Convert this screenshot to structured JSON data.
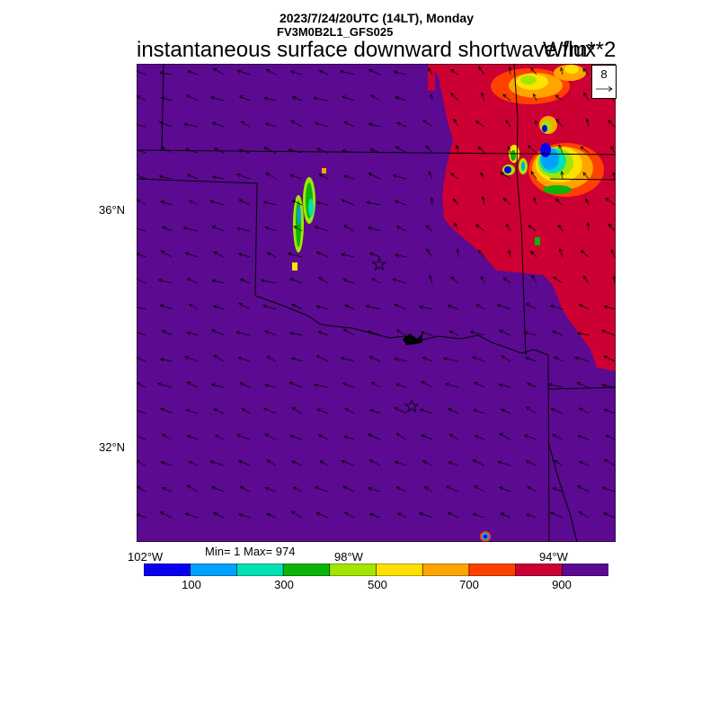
{
  "header": {
    "datetime": "2023/7/24/20UTC (14LT), Monday",
    "model": "FV3M0B2L1_GFS025",
    "title": "instantaneous surface downward shortwave flux",
    "units": "W/m**2"
  },
  "reference_vector": {
    "value": "8"
  },
  "axes": {
    "lat_labels": [
      "36°N",
      "32°N"
    ],
    "lon_labels": [
      "102°W",
      "98°W",
      "94°W"
    ]
  },
  "stats": {
    "text": "Min= 1 Max= 974"
  },
  "colorbar": {
    "colors": [
      "#0a00f0",
      "#00a2ff",
      "#00e1b4",
      "#0bb30b",
      "#a2e600",
      "#ffe100",
      "#ffa500",
      "#ff4100",
      "#cc0033",
      "#5b0a91"
    ],
    "labels": [
      "100",
      "300",
      "500",
      "700",
      "900"
    ]
  },
  "map": {
    "background_color": "#5b0a91",
    "stars": [
      "Oklahoma City",
      "Dallas"
    ]
  }
}
